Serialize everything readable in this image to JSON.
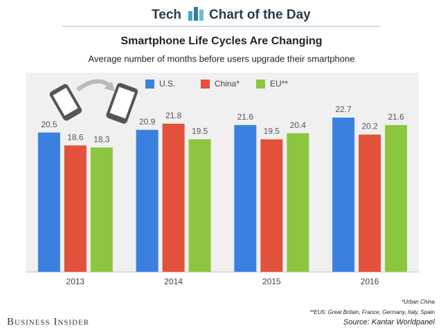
{
  "header": {
    "left": "Tech",
    "right": "Chart of the Day"
  },
  "chart_data": {
    "type": "bar",
    "title": "Smartphone Life Cycles Are Changing",
    "subtitle": "Average number of months before users upgrade their smartphone",
    "categories": [
      "2013",
      "2014",
      "2015",
      "2016"
    ],
    "series": [
      {
        "name": "U.S.",
        "color": "#3b80e0",
        "values": [
          20.5,
          20.9,
          21.6,
          22.7
        ]
      },
      {
        "name": "China*",
        "color": "#e2513a",
        "values": [
          18.6,
          21.8,
          19.5,
          20.2
        ]
      },
      {
        "name": "EU**",
        "color": "#8cc63e",
        "values": [
          18.3,
          19.5,
          20.4,
          21.6
        ]
      }
    ],
    "legend": "top"
  },
  "footer": {
    "notes": [
      "*Urban China",
      "**EU5: Great Britain, France, Germany, Italy, Spain"
    ],
    "source": "Source: Kantar Worldpanel",
    "brand": "Business Insider"
  }
}
